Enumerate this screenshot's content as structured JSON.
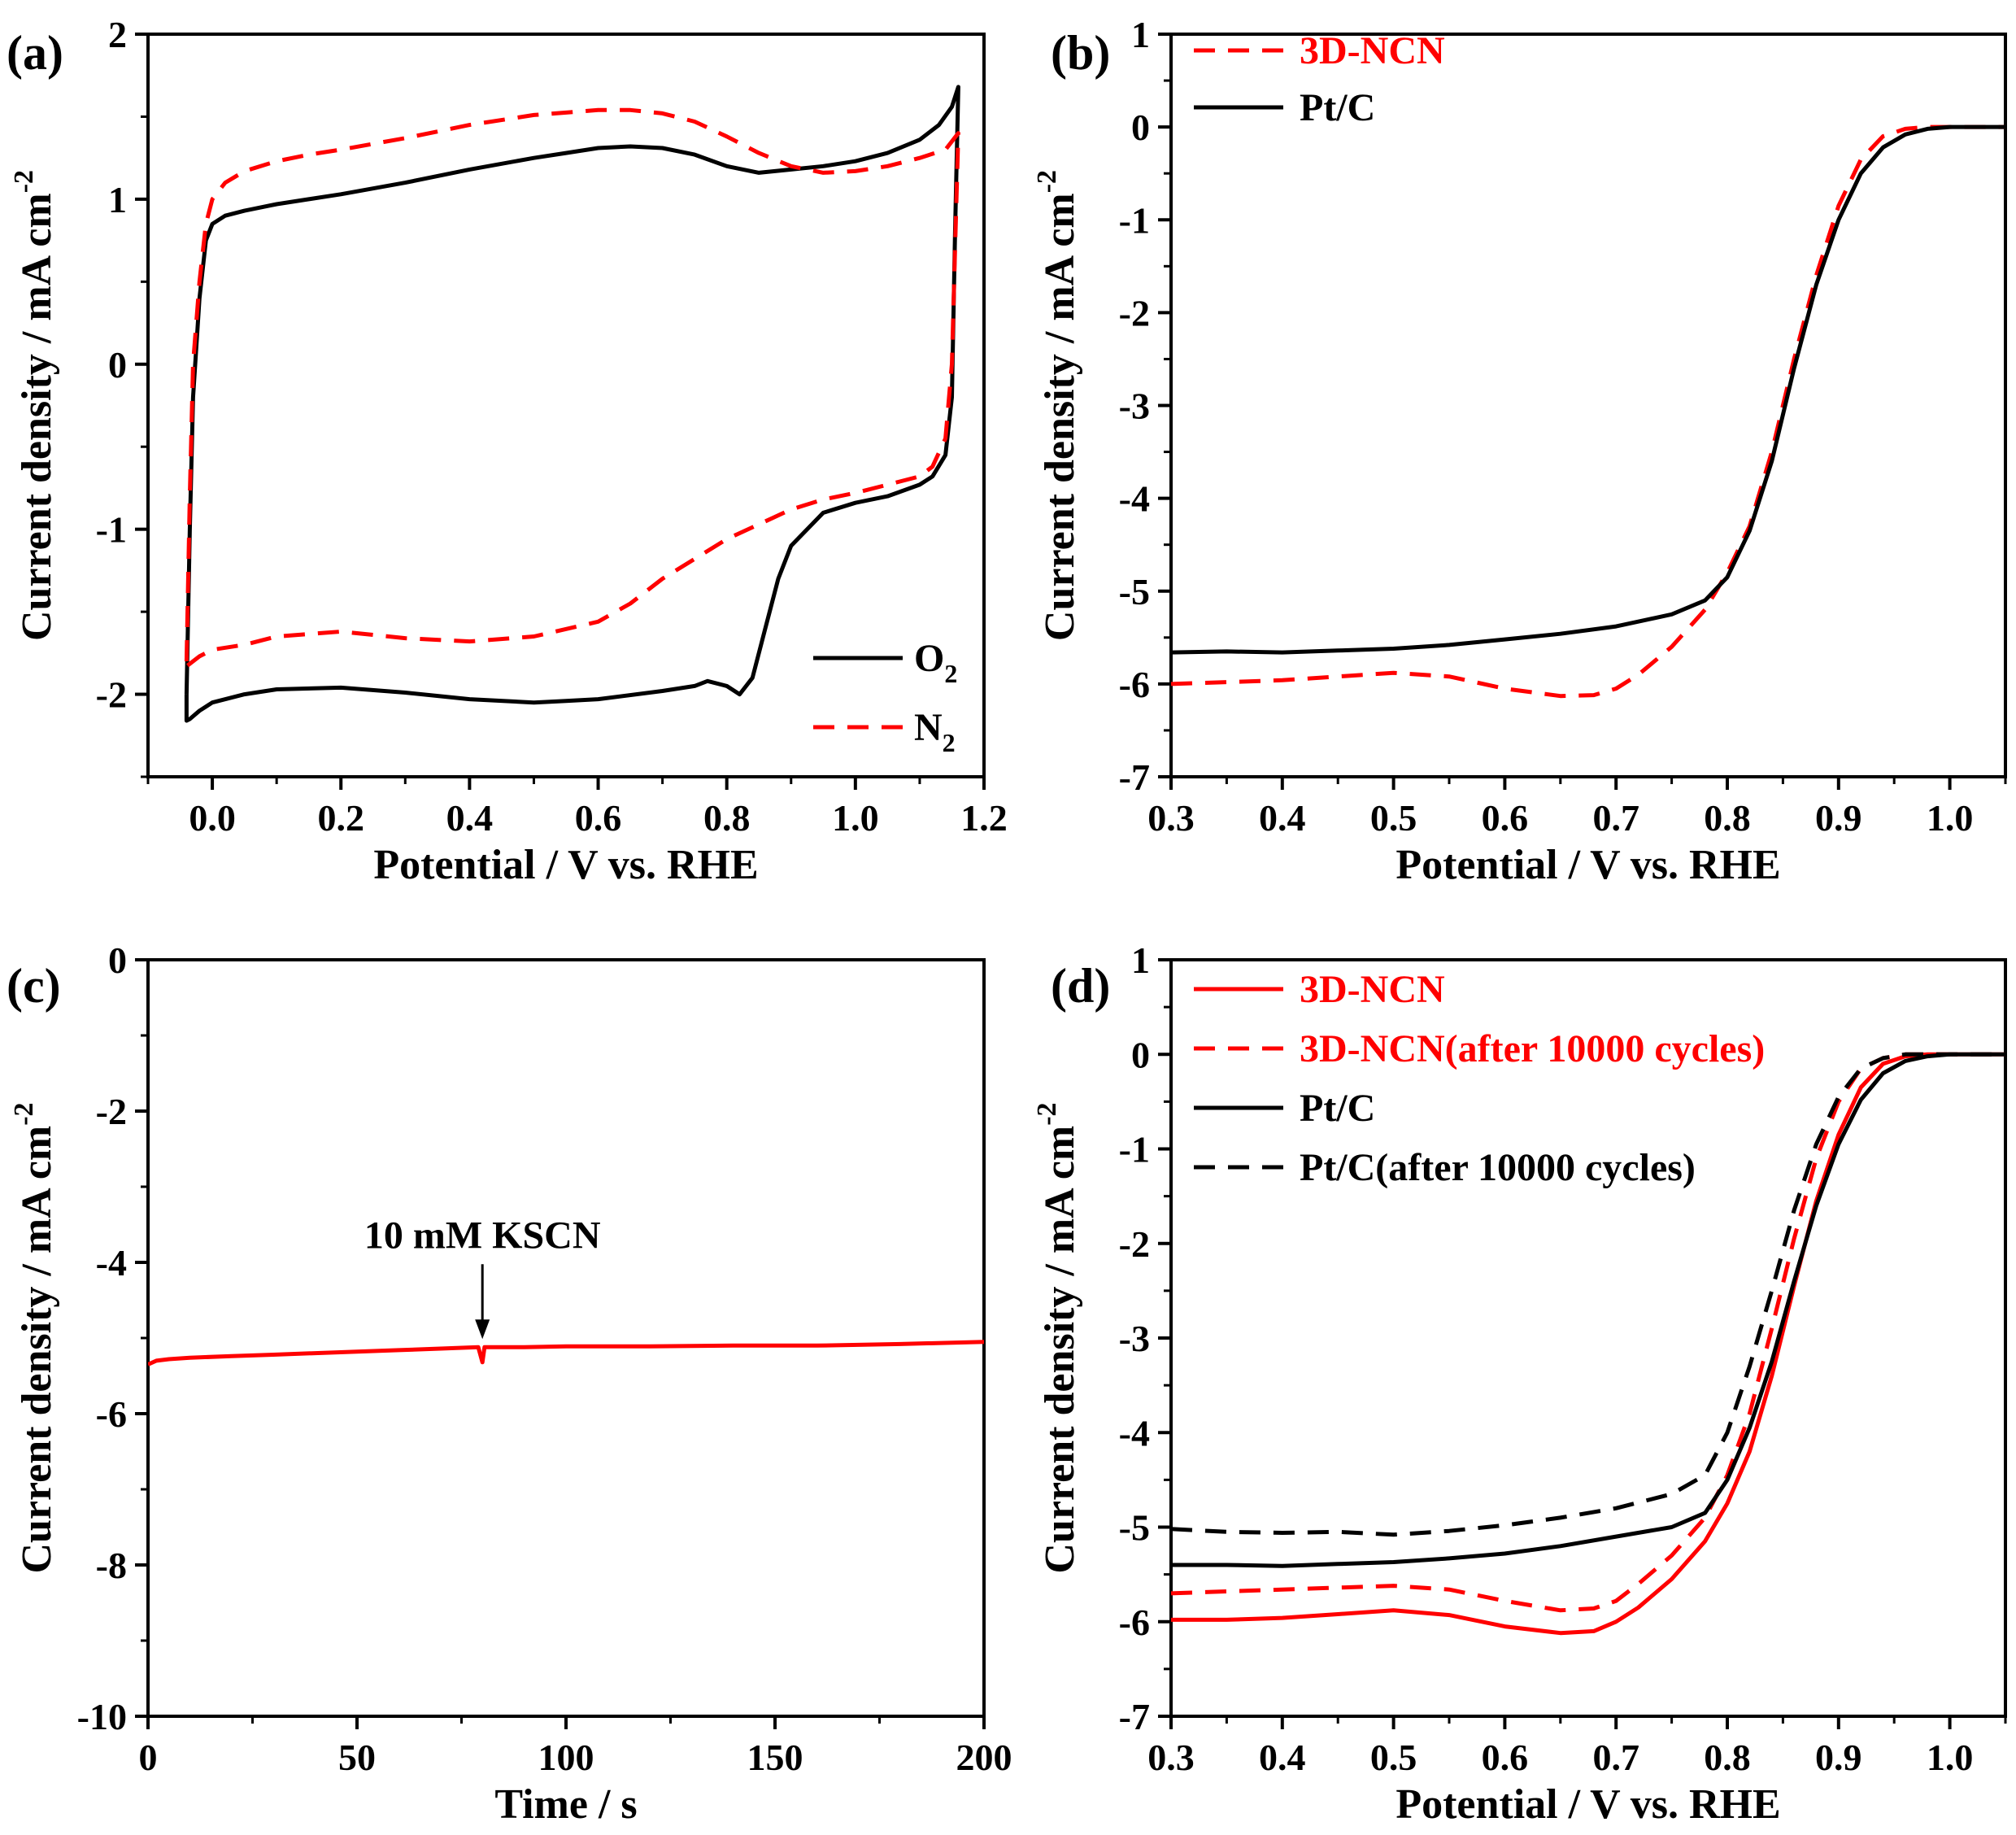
{
  "chart_data": [
    {
      "panel": "(a)",
      "type": "line",
      "xlabel": "Potential / V vs. RHE",
      "ylabel": "Current density / mA cm",
      "ylabel_sup": "-2",
      "xlim": [
        -0.1,
        1.2
      ],
      "ylim": [
        -2.5,
        2
      ],
      "xticks": [
        "0.0",
        "0.2",
        "0.4",
        "0.6",
        "0.8",
        "1.0",
        "1.2"
      ],
      "xtick_values": [
        0.0,
        0.2,
        0.4,
        0.6,
        0.8,
        1.0,
        1.2
      ],
      "yticks": [
        "-2",
        "-1",
        "0",
        "1",
        "2"
      ],
      "ytick_values": [
        -2,
        -1,
        0,
        1,
        2
      ],
      "legend_position": "bottom-right",
      "series": [
        {
          "name": "O",
          "name_sub": "2",
          "color": "#000000",
          "dash": "solid",
          "x": [
            -0.04,
            -0.035,
            -0.03,
            -0.02,
            -0.01,
            0.0,
            0.02,
            0.05,
            0.1,
            0.15,
            0.2,
            0.3,
            0.4,
            0.5,
            0.55,
            0.6,
            0.65,
            0.7,
            0.75,
            0.8,
            0.85,
            0.9,
            0.95,
            1.0,
            1.05,
            1.1,
            1.13,
            1.15,
            1.16,
            1.155,
            1.15,
            1.14,
            1.12,
            1.1,
            1.05,
            1.0,
            0.95,
            0.9,
            0.88,
            0.86,
            0.84,
            0.82,
            0.8,
            0.77,
            0.75,
            0.7,
            0.6,
            0.55,
            0.5,
            0.4,
            0.3,
            0.2,
            0.1,
            0.05,
            0.0,
            -0.02,
            -0.035,
            -0.04,
            -0.04
          ],
          "y": [
            -2.0,
            -1.0,
            -0.2,
            0.4,
            0.75,
            0.85,
            0.9,
            0.93,
            0.97,
            1.0,
            1.03,
            1.1,
            1.18,
            1.25,
            1.28,
            1.31,
            1.32,
            1.31,
            1.27,
            1.2,
            1.16,
            1.18,
            1.2,
            1.23,
            1.28,
            1.36,
            1.45,
            1.56,
            1.68,
            0.8,
            -0.2,
            -0.55,
            -0.68,
            -0.73,
            -0.8,
            -0.84,
            -0.9,
            -1.1,
            -1.3,
            -1.6,
            -1.9,
            -2.0,
            -1.95,
            -1.92,
            -1.95,
            -1.98,
            -2.03,
            -2.04,
            -2.05,
            -2.03,
            -1.99,
            -1.96,
            -1.97,
            -2.0,
            -2.05,
            -2.1,
            -2.15,
            -2.16,
            -2.0
          ]
        },
        {
          "name": "N",
          "name_sub": "2",
          "color": "#ff0000",
          "dash": "dashed",
          "x": [
            -0.04,
            -0.035,
            -0.03,
            -0.02,
            -0.01,
            0.0,
            0.02,
            0.05,
            0.1,
            0.15,
            0.2,
            0.3,
            0.4,
            0.5,
            0.6,
            0.65,
            0.7,
            0.75,
            0.8,
            0.85,
            0.9,
            0.95,
            1.0,
            1.05,
            1.1,
            1.14,
            1.16,
            1.155,
            1.15,
            1.14,
            1.12,
            1.1,
            1.05,
            1.0,
            0.95,
            0.9,
            0.85,
            0.8,
            0.75,
            0.7,
            0.65,
            0.6,
            0.5,
            0.4,
            0.3,
            0.2,
            0.1,
            0.05,
            0.0,
            -0.02,
            -0.04,
            -0.04
          ],
          "y": [
            -1.8,
            -0.8,
            0.0,
            0.5,
            0.85,
            1.0,
            1.1,
            1.17,
            1.23,
            1.27,
            1.3,
            1.37,
            1.45,
            1.51,
            1.54,
            1.54,
            1.52,
            1.47,
            1.38,
            1.28,
            1.2,
            1.16,
            1.17,
            1.2,
            1.25,
            1.3,
            1.4,
            0.7,
            0.0,
            -0.45,
            -0.62,
            -0.68,
            -0.73,
            -0.78,
            -0.82,
            -0.88,
            -0.97,
            -1.06,
            -1.18,
            -1.3,
            -1.45,
            -1.56,
            -1.65,
            -1.68,
            -1.66,
            -1.62,
            -1.65,
            -1.7,
            -1.73,
            -1.77,
            -1.83,
            -1.8
          ]
        }
      ]
    },
    {
      "panel": "(b)",
      "type": "line",
      "xlabel": "Potential / V vs. RHE",
      "ylabel": "Current density / mA cm",
      "ylabel_sup": "-2",
      "xlim": [
        0.3,
        1.05
      ],
      "ylim": [
        -7,
        1
      ],
      "xticks": [
        "0.3",
        "0.4",
        "0.5",
        "0.6",
        "0.7",
        "0.8",
        "0.9",
        "1.0"
      ],
      "xtick_values": [
        0.3,
        0.4,
        0.5,
        0.6,
        0.7,
        0.8,
        0.9,
        1.0
      ],
      "yticks": [
        "-7",
        "-6",
        "-5",
        "-4",
        "-3",
        "-2",
        "-1",
        "0",
        "1"
      ],
      "ytick_values": [
        -7,
        -6,
        -5,
        -4,
        -3,
        -2,
        -1,
        0,
        1
      ],
      "legend_position": "top-left",
      "series": [
        {
          "name": "3D-NCN",
          "color": "#ff0000",
          "dash": "dashed",
          "x": [
            0.3,
            0.35,
            0.4,
            0.45,
            0.5,
            0.55,
            0.6,
            0.65,
            0.68,
            0.7,
            0.72,
            0.75,
            0.78,
            0.8,
            0.82,
            0.84,
            0.86,
            0.88,
            0.9,
            0.92,
            0.94,
            0.96,
            0.98,
            1.0,
            1.02,
            1.05
          ],
          "y": [
            -6.0,
            -5.98,
            -5.96,
            -5.92,
            -5.88,
            -5.92,
            -6.05,
            -6.13,
            -6.12,
            -6.05,
            -5.9,
            -5.6,
            -5.2,
            -4.8,
            -4.3,
            -3.5,
            -2.5,
            -1.6,
            -0.85,
            -0.35,
            -0.1,
            -0.02,
            0.0,
            0.0,
            0.0,
            0.0
          ]
        },
        {
          "name": "Pt/C",
          "color": "#000000",
          "dash": "solid",
          "x": [
            0.3,
            0.35,
            0.4,
            0.45,
            0.5,
            0.55,
            0.6,
            0.65,
            0.7,
            0.75,
            0.78,
            0.8,
            0.82,
            0.84,
            0.86,
            0.88,
            0.9,
            0.92,
            0.94,
            0.96,
            0.98,
            1.0,
            1.02,
            1.05
          ],
          "y": [
            -5.66,
            -5.65,
            -5.66,
            -5.64,
            -5.62,
            -5.58,
            -5.52,
            -5.46,
            -5.38,
            -5.25,
            -5.1,
            -4.85,
            -4.35,
            -3.6,
            -2.6,
            -1.7,
            -1.0,
            -0.5,
            -0.22,
            -0.08,
            -0.02,
            0.0,
            0.0,
            0.0
          ]
        }
      ]
    },
    {
      "panel": "(c)",
      "type": "line",
      "xlabel": "Time / s",
      "ylabel": "Current density / mA cm",
      "ylabel_sup": "-2",
      "xlim": [
        0,
        200
      ],
      "ylim": [
        -10,
        0
      ],
      "xticks": [
        "0",
        "50",
        "100",
        "150",
        "200"
      ],
      "xtick_values": [
        0,
        50,
        100,
        150,
        200
      ],
      "yticks": [
        "-10",
        "-8",
        "-6",
        "-4",
        "-2",
        "0"
      ],
      "ytick_values": [
        -10,
        -8,
        -6,
        -4,
        -2,
        0
      ],
      "annotation": {
        "text": "10 mM KSCN",
        "x": 80,
        "y": -5.1
      },
      "series": [
        {
          "name": "",
          "color": "#ff0000",
          "dash": "solid",
          "x": [
            0,
            2,
            5,
            10,
            20,
            30,
            40,
            50,
            60,
            70,
            79,
            80,
            80.5,
            81,
            90,
            100,
            120,
            140,
            160,
            180,
            200
          ],
          "y": [
            -5.35,
            -5.3,
            -5.28,
            -5.26,
            -5.24,
            -5.22,
            -5.2,
            -5.18,
            -5.16,
            -5.14,
            -5.12,
            -5.32,
            -5.12,
            -5.12,
            -5.12,
            -5.11,
            -5.11,
            -5.1,
            -5.1,
            -5.08,
            -5.05
          ]
        }
      ]
    },
    {
      "panel": "(d)",
      "type": "line",
      "xlabel": "Potential / V vs. RHE",
      "ylabel": "Current density / mA cm",
      "ylabel_sup": "-2",
      "xlim": [
        0.3,
        1.05
      ],
      "ylim": [
        -7,
        1
      ],
      "xticks": [
        "0.3",
        "0.4",
        "0.5",
        "0.6",
        "0.7",
        "0.8",
        "0.9",
        "1.0"
      ],
      "xtick_values": [
        0.3,
        0.4,
        0.5,
        0.6,
        0.7,
        0.8,
        0.9,
        1.0
      ],
      "yticks": [
        "-7",
        "-6",
        "-5",
        "-4",
        "-3",
        "-2",
        "-1",
        "0",
        "1"
      ],
      "ytick_values": [
        -7,
        -6,
        -5,
        -4,
        -3,
        -2,
        -1,
        0,
        1
      ],
      "legend_position": "top-left",
      "series": [
        {
          "name": "3D-NCN",
          "color": "#ff0000",
          "dash": "solid",
          "x": [
            0.3,
            0.35,
            0.4,
            0.45,
            0.5,
            0.55,
            0.6,
            0.65,
            0.68,
            0.7,
            0.72,
            0.75,
            0.78,
            0.8,
            0.82,
            0.84,
            0.86,
            0.88,
            0.9,
            0.92,
            0.94,
            0.96,
            0.98,
            1.0,
            1.05
          ],
          "y": [
            -5.98,
            -5.98,
            -5.96,
            -5.92,
            -5.88,
            -5.93,
            -6.05,
            -6.12,
            -6.1,
            -6.0,
            -5.85,
            -5.55,
            -5.15,
            -4.75,
            -4.2,
            -3.4,
            -2.45,
            -1.55,
            -0.85,
            -0.35,
            -0.1,
            -0.02,
            0.0,
            0.0,
            0.0
          ]
        },
        {
          "name": "3D-NCN(after 10000 cycles)",
          "color": "#ff0000",
          "dash": "dashed",
          "x": [
            0.3,
            0.35,
            0.4,
            0.45,
            0.5,
            0.55,
            0.6,
            0.65,
            0.68,
            0.7,
            0.72,
            0.75,
            0.78,
            0.8,
            0.82,
            0.84,
            0.86,
            0.88,
            0.9,
            0.92,
            0.94,
            0.96,
            0.98,
            1.0,
            1.05
          ],
          "y": [
            -5.7,
            -5.68,
            -5.66,
            -5.64,
            -5.62,
            -5.66,
            -5.78,
            -5.88,
            -5.86,
            -5.78,
            -5.6,
            -5.3,
            -4.9,
            -4.45,
            -3.8,
            -2.9,
            -1.95,
            -1.1,
            -0.5,
            -0.15,
            -0.04,
            0.0,
            0.0,
            0.0,
            0.0
          ]
        },
        {
          "name": "Pt/C",
          "color": "#000000",
          "dash": "solid",
          "x": [
            0.3,
            0.35,
            0.4,
            0.45,
            0.5,
            0.55,
            0.6,
            0.65,
            0.7,
            0.75,
            0.78,
            0.8,
            0.82,
            0.84,
            0.86,
            0.88,
            0.9,
            0.92,
            0.94,
            0.96,
            0.98,
            1.0,
            1.05
          ],
          "y": [
            -5.4,
            -5.4,
            -5.41,
            -5.39,
            -5.37,
            -5.33,
            -5.28,
            -5.2,
            -5.1,
            -5.0,
            -4.85,
            -4.5,
            -3.95,
            -3.25,
            -2.4,
            -1.6,
            -0.95,
            -0.48,
            -0.2,
            -0.07,
            -0.02,
            0.0,
            0.0
          ]
        },
        {
          "name": "Pt/C(after 10000 cycles)",
          "color": "#000000",
          "dash": "dashed",
          "x": [
            0.3,
            0.35,
            0.4,
            0.45,
            0.5,
            0.55,
            0.6,
            0.65,
            0.7,
            0.75,
            0.78,
            0.8,
            0.82,
            0.84,
            0.86,
            0.88,
            0.9,
            0.92,
            0.94,
            0.96,
            1.0,
            1.05
          ],
          "y": [
            -5.02,
            -5.05,
            -5.06,
            -5.05,
            -5.08,
            -5.04,
            -4.98,
            -4.9,
            -4.8,
            -4.65,
            -4.45,
            -4.0,
            -3.3,
            -2.5,
            -1.65,
            -0.95,
            -0.45,
            -0.15,
            -0.04,
            0.0,
            0.0,
            0.0
          ]
        }
      ]
    }
  ]
}
